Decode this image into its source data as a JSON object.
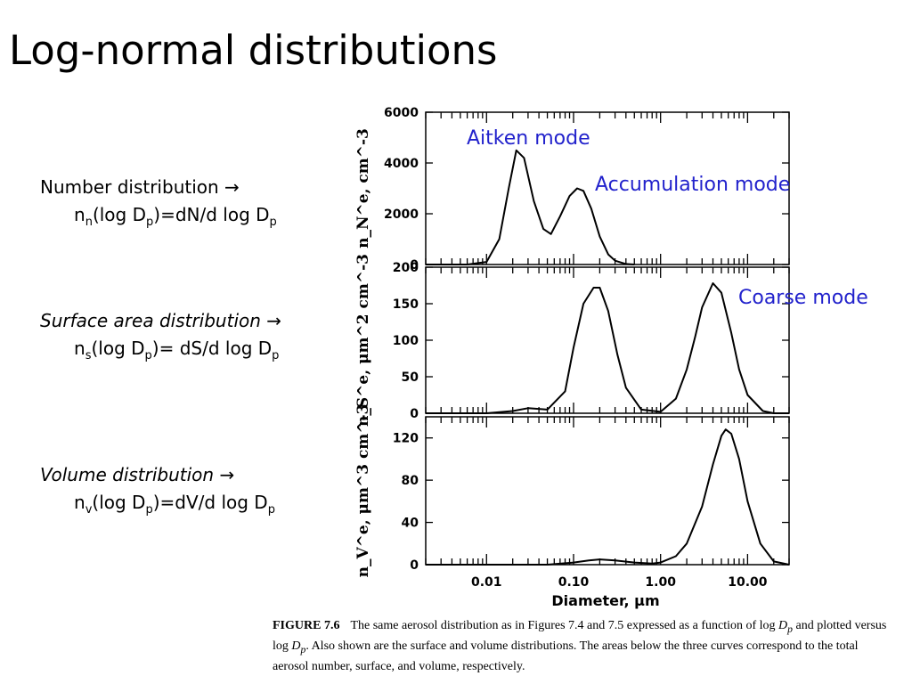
{
  "slide": {
    "title": "Log-normal distributions"
  },
  "distributions": {
    "number": {
      "name": "Number distribution →",
      "formula_html": "n<sub>n</sub>(log D<sub>p</sub>)=dN/d log D<sub>p</sub>"
    },
    "surface": {
      "name": "Surface area distribution →",
      "formula_html": "n<sub>s</sub>(log D<sub>p</sub>)= dS/d log D<sub>p</sub>"
    },
    "volume": {
      "name": "Volume distribution →",
      "formula_html": "n<sub>v</sub>(log D<sub>p</sub>)=dV/d log D<sub>p</sub>"
    }
  },
  "annotations": {
    "aitken": "Aitken mode",
    "accumulation": "Accumulation mode",
    "coarse": "Coarse mode"
  },
  "caption": {
    "label": "FIGURE 7.6",
    "text_html": "The same aerosol distribution as in Figures 7.4 and 7.5 expressed as a function of log <i>D<sub>p</sub></i> and plotted versus log <i>D<sub>p</sub></i>. Also shown are the surface and volume distributions. The areas below the three curves correspond to the total aerosol number, surface, and volume, respectively."
  },
  "chart_data": [
    {
      "type": "line",
      "ylabel": "n_N^e, cm^-3",
      "xscale": "log",
      "xlim": [
        0.002,
        30
      ],
      "ylim": [
        0,
        6000
      ],
      "yticks": [
        0,
        2000,
        4000,
        6000
      ],
      "series": [
        {
          "x": [
            0.002,
            0.006,
            0.01,
            0.014,
            0.018,
            0.022,
            0.027,
            0.035,
            0.045,
            0.055,
            0.07,
            0.09,
            0.11,
            0.13,
            0.16,
            0.2,
            0.25,
            0.3,
            0.4,
            0.5
          ],
          "y": [
            0,
            0,
            100,
            1000,
            3000,
            4500,
            4200,
            2500,
            1400,
            1200,
            1900,
            2700,
            3000,
            2900,
            2200,
            1100,
            400,
            150,
            20,
            0
          ]
        }
      ]
    },
    {
      "type": "line",
      "ylabel": "n_S^e, μm^2 cm^-3",
      "xscale": "log",
      "xlim": [
        0.002,
        30
      ],
      "ylim": [
        0,
        200
      ],
      "yticks": [
        0,
        50,
        100,
        150,
        200
      ],
      "series": [
        {
          "x": [
            0.002,
            0.01,
            0.02,
            0.03,
            0.05,
            0.08,
            0.1,
            0.13,
            0.17,
            0.2,
            0.25,
            0.32,
            0.4,
            0.6,
            1.0,
            1.5,
            2.0,
            2.5,
            3.0,
            4.0,
            5.0,
            6.5,
            8.0,
            10.0,
            15.0,
            20.0,
            30.0
          ],
          "y": [
            0,
            0,
            3,
            7,
            5,
            30,
            90,
            150,
            172,
            172,
            140,
            80,
            35,
            5,
            2,
            20,
            60,
            105,
            145,
            178,
            165,
            110,
            60,
            25,
            3,
            0,
            0
          ]
        }
      ]
    },
    {
      "type": "line",
      "xlabel": "Diameter, μm",
      "ylabel": "n_V^e, μm^3 cm^-3",
      "xscale": "log",
      "xlim": [
        0.002,
        30
      ],
      "ylim": [
        0,
        140
      ],
      "yticks": [
        0,
        40,
        80,
        120
      ],
      "xticks": [
        0.01,
        0.1,
        1.0,
        10.0
      ],
      "xtick_labels": [
        "0.01",
        "0.10",
        "1.00",
        "10.00"
      ],
      "series": [
        {
          "x": [
            0.002,
            0.05,
            0.1,
            0.15,
            0.2,
            0.3,
            0.5,
            0.8,
            1.0,
            1.5,
            2.0,
            3.0,
            4.0,
            5.0,
            5.6,
            6.5,
            8.0,
            10.0,
            14.0,
            20.0,
            30.0
          ],
          "y": [
            0,
            0,
            2,
            4,
            5,
            4,
            2,
            1,
            2,
            8,
            20,
            55,
            95,
            122,
            128,
            124,
            100,
            60,
            20,
            3,
            0
          ]
        }
      ]
    }
  ]
}
